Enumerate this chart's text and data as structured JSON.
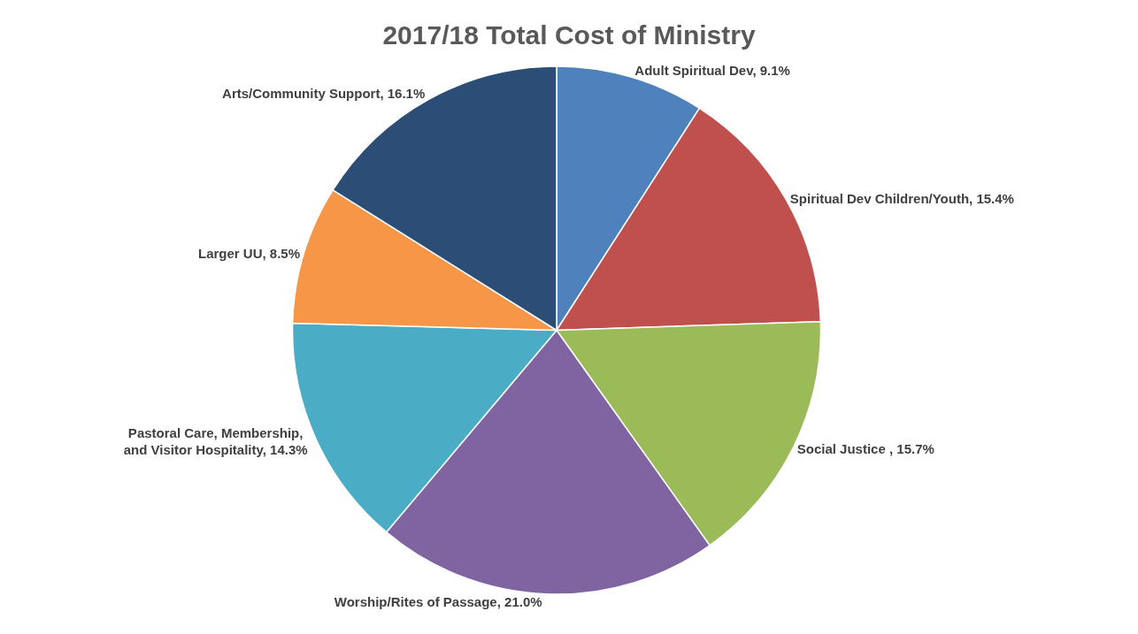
{
  "chart_data": {
    "type": "pie",
    "title": "2017/18 Total Cost of Ministry",
    "categories": [
      "Adult Spiritual Dev",
      "Spiritual Dev Children/Youth",
      "Social Justice ",
      "Worship/Rites of Passage",
      "Pastoral Care, Membership, and Visitor Hospitality",
      "Larger UU",
      "Arts/Community Support"
    ],
    "values": [
      9.1,
      15.4,
      15.7,
      21.0,
      14.3,
      8.5,
      16.1
    ],
    "value_labels": [
      "9.1%",
      "15.4%",
      "15.7%",
      "21.0%",
      "14.3%",
      "8.5%",
      "16.1%"
    ],
    "colors": [
      "#4f81bd",
      "#c0504d",
      "#9bbb59",
      "#8064a2",
      "#4bacc6",
      "#f79646",
      "#2c4d75"
    ],
    "legend": false
  }
}
